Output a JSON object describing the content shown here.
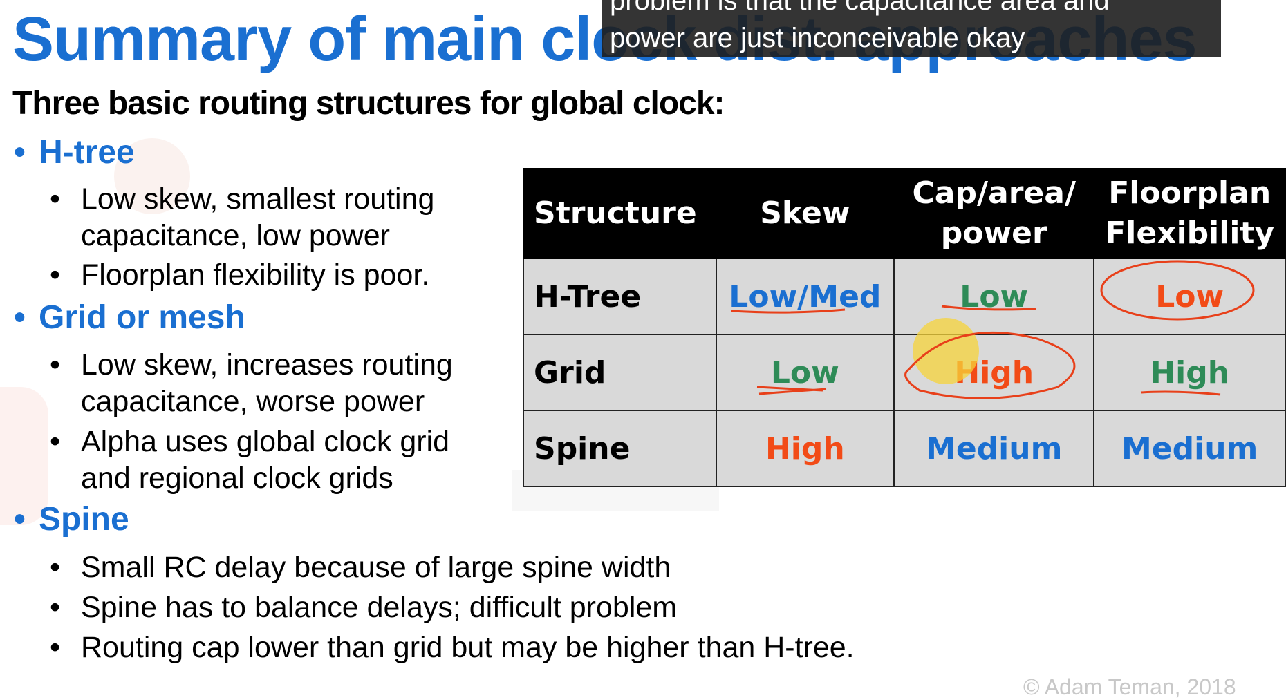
{
  "title": "Summary of main clock dist. approaches",
  "subtitle": "Three basic routing structures for global clock:",
  "sections": [
    {
      "heading": "H-tree",
      "bullets": [
        "Low skew, smallest routing\ncapacitance, low power",
        "Floorplan flexibility is poor."
      ]
    },
    {
      "heading": "Grid or mesh",
      "bullets": [
        "Low skew, increases routing\ncapacitance, worse power",
        "Alpha uses global clock grid\nand regional clock grids"
      ]
    },
    {
      "heading": "Spine",
      "bullets": [
        "Small RC delay because of large spine width",
        "Spine has to balance delays; difficult problem",
        "Routing cap lower than grid but may be higher than H-tree."
      ]
    }
  ],
  "table": {
    "headers": [
      "Structure",
      "Skew",
      "Cap/area/\npower",
      "Floorplan\nFlexibility"
    ],
    "rows": [
      {
        "label": "H-Tree",
        "cells": [
          "Low/Med",
          "Low",
          "Low"
        ],
        "colors": [
          "blue",
          "green",
          "orange"
        ]
      },
      {
        "label": "Grid",
        "cells": [
          "Low",
          "High",
          "High"
        ],
        "colors": [
          "green",
          "orange",
          "green"
        ]
      },
      {
        "label": "Spine",
        "cells": [
          "High",
          "Medium",
          "Medium"
        ],
        "colors": [
          "orange",
          "blue",
          "blue"
        ]
      }
    ]
  },
  "caption": {
    "line1": "problem is that the capacitance area and",
    "line2": "power are just inconceivable okay"
  },
  "footer": "© Adam Teman, 2018",
  "colors": {
    "blue": "#1a6fd1",
    "green": "#2e8b57",
    "orange": "#f24b17",
    "annotation_red": "#e8401a",
    "highlight_yellow": "#f5d33a"
  }
}
